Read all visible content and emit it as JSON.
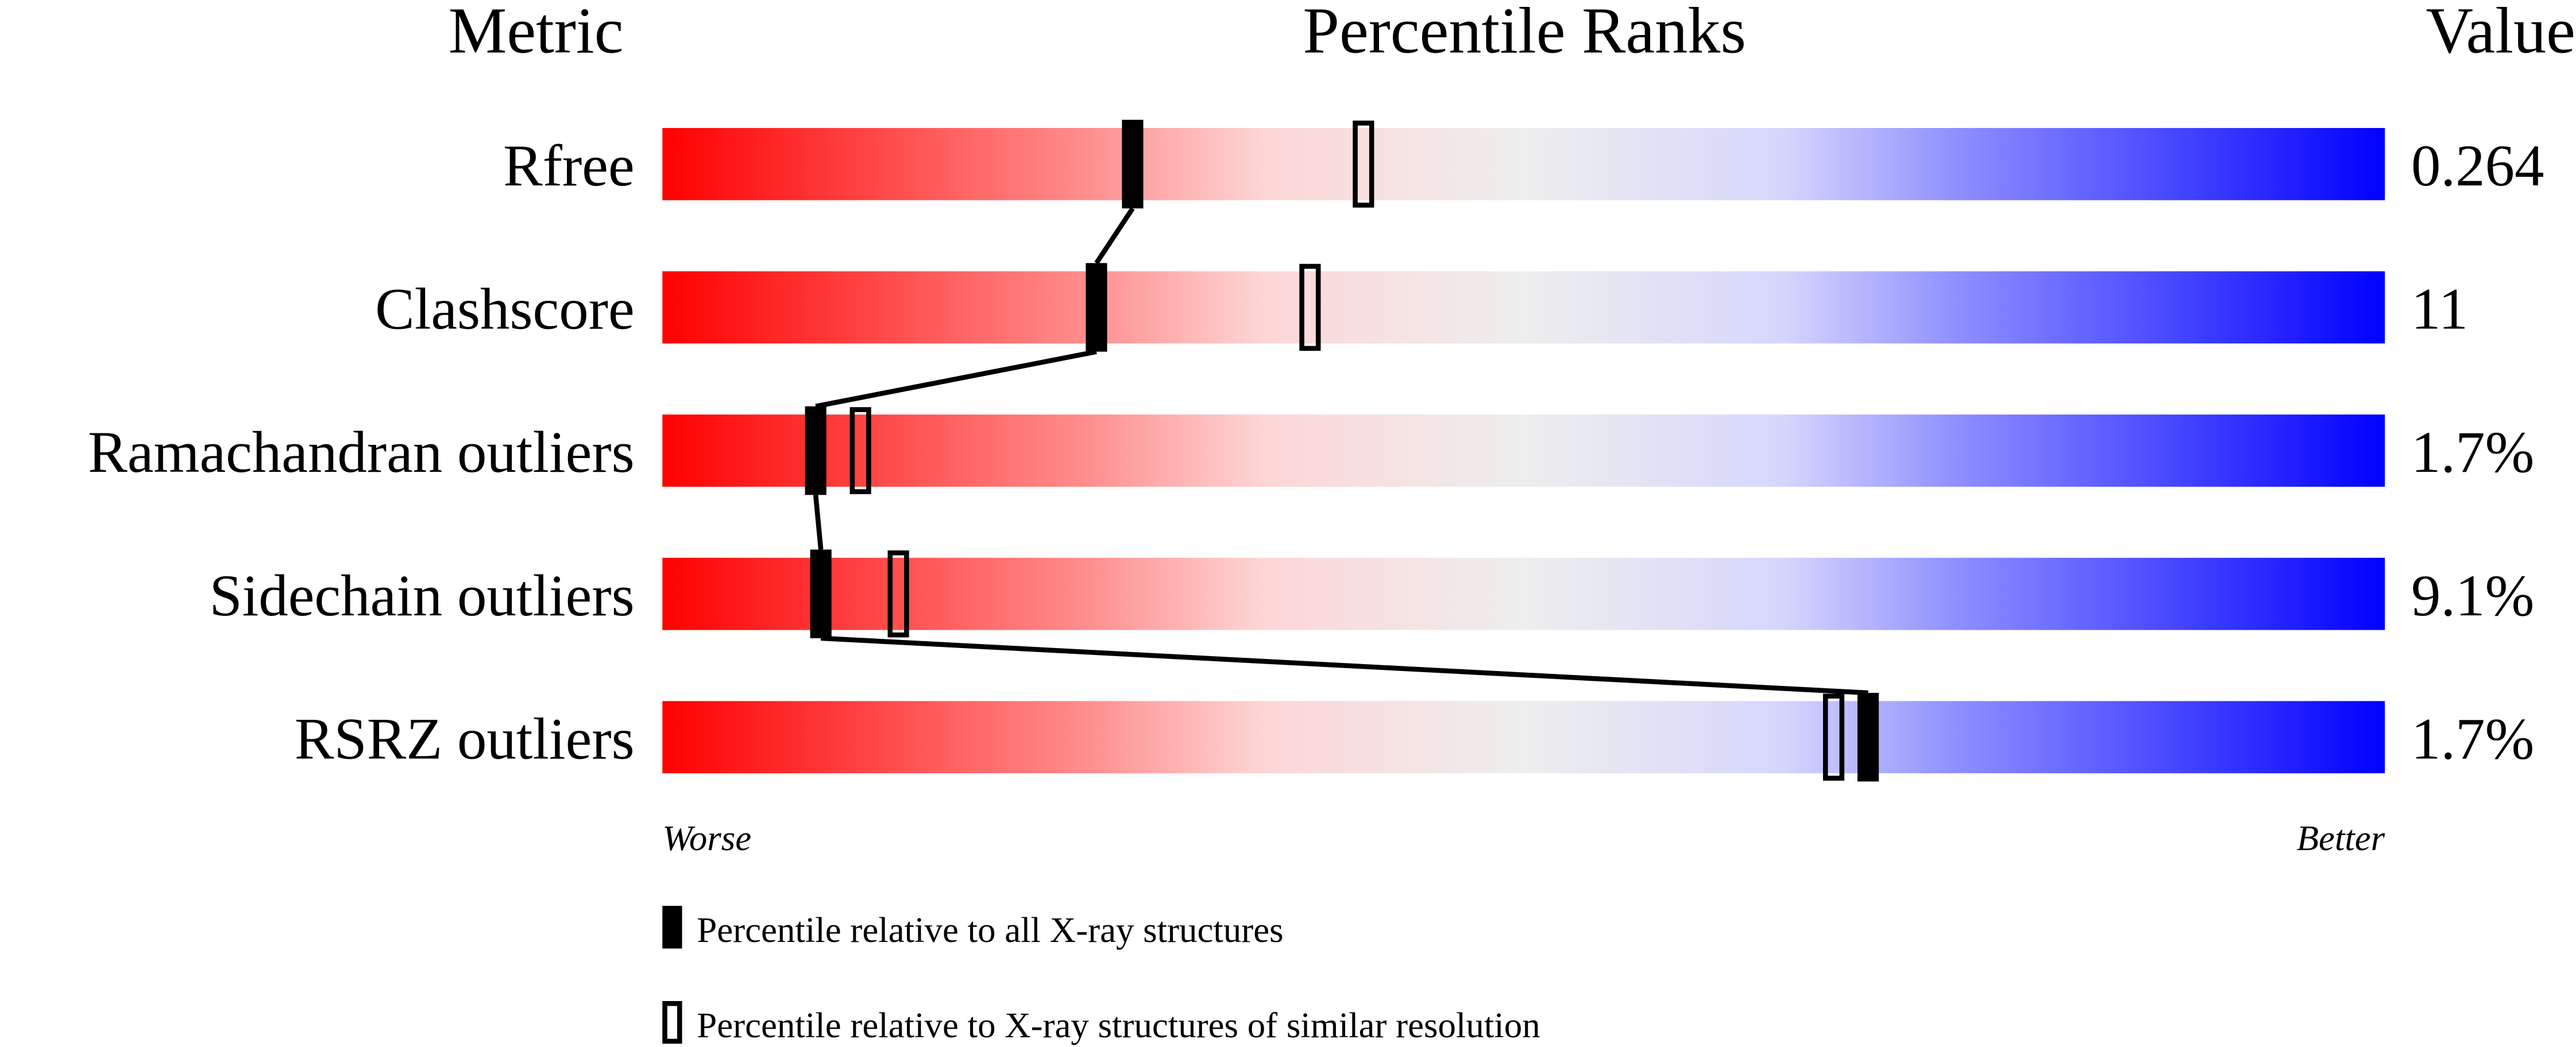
{
  "chart_data": {
    "type": "percentile-bars",
    "headers": {
      "metric": "Metric",
      "ranks": "Percentile Ranks",
      "value": "Value"
    },
    "xlim": [
      0,
      100
    ],
    "rows": [
      {
        "metric": "Rfree",
        "value": "0.264",
        "percentile_all": 27.3,
        "percentile_similar": 40.7
      },
      {
        "metric": "Clashscore",
        "value": "11",
        "percentile_all": 25.2,
        "percentile_similar": 37.6
      },
      {
        "metric": "Ramachandran outliers",
        "value": "1.7%",
        "percentile_all": 8.9,
        "percentile_similar": 11.5
      },
      {
        "metric": "Sidechain outliers",
        "value": "9.1%",
        "percentile_all": 9.2,
        "percentile_similar": 13.7
      },
      {
        "metric": "RSRZ outliers",
        "value": "1.7%",
        "percentile_all": 70.0,
        "percentile_similar": 68.0
      }
    ],
    "axis_labels": {
      "left": "Worse",
      "right": "Better"
    },
    "legend": {
      "all": "Percentile relative to all X-ray structures",
      "similar": "Percentile relative to X-ray structures of similar resolution"
    },
    "colors": {
      "worse": "#ff0000",
      "middle": "#eeeeee",
      "better": "#0000ff",
      "marker": "#000000"
    }
  }
}
